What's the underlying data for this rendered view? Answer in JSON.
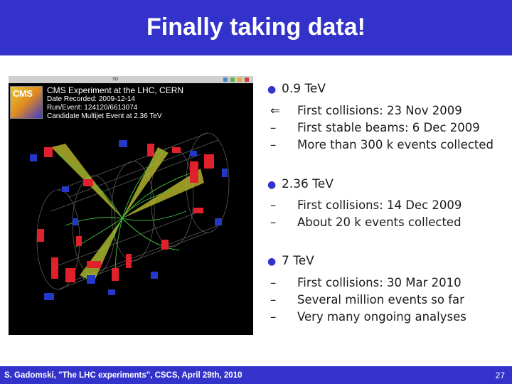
{
  "slide": {
    "title": "Finally taking data!",
    "page_number": "27",
    "footer": "S. Gadomski, \"The LHC experiments\", CSCS, April 29th, 2010"
  },
  "figure": {
    "window_title": "3D",
    "logo_text": "CMS",
    "event_title": "CMS Experiment at the LHC, CERN",
    "date_recorded": "Date Recorded: 2009-12-14",
    "run_event": "Run/Event: 124120/6613074",
    "candidate": "Candidate Multijet Event at 2.36 TeV"
  },
  "bullets": [
    {
      "text": "0.9 TeV",
      "items": [
        {
          "marker": "⇐",
          "text": "First collisions: 23 Nov 2009"
        },
        {
          "marker": "–",
          "text": "First stable beams: 6 Dec 2009"
        },
        {
          "marker": "–",
          "text": "More than 300 k events collected"
        }
      ]
    },
    {
      "text": "2.36 TeV",
      "items": [
        {
          "marker": "–",
          "text": "First collisions: 14 Dec 2009"
        },
        {
          "marker": "–",
          "text": "About 20 k events collected"
        }
      ]
    },
    {
      "text": "7 TeV",
      "items": [
        {
          "marker": "–",
          "text": "First collisions: 30 Mar 2010"
        },
        {
          "marker": "–",
          "text": "Several million events so far"
        },
        {
          "marker": "–",
          "text": "Very many ongoing analyses"
        }
      ]
    }
  ],
  "colors": {
    "brand_blue": "#3333cc",
    "jet_yellow": "#c8c832",
    "hcal_red": "#e0202a",
    "muon_blue": "#2438c8"
  }
}
